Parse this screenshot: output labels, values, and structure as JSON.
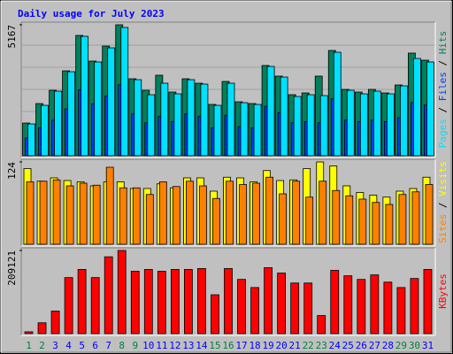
{
  "title": "Daily usage for July 2023",
  "chart_data": [
    {
      "type": "bar",
      "legend_separator": " / ",
      "series": [
        {
          "name": "Hits",
          "color": "#00805c",
          "values": [
            1291,
            2059,
            2583,
            3351,
            4747,
            3735,
            4329,
            5167,
            3037,
            2583,
            3177,
            2513,
            3037,
            2862,
            2025,
            2932,
            2129,
            2059,
            3561,
            3142,
            2409,
            2479,
            3142,
            4154,
            2618,
            2513,
            2618,
            2479,
            2793,
            4050,
            3770
          ]
        },
        {
          "name": "Files",
          "color": "#0040ff",
          "values": [
            700,
            1100,
            1400,
            1850,
            2600,
            2050,
            2350,
            2800,
            1650,
            1300,
            1550,
            1350,
            1650,
            1550,
            1100,
            1600,
            1150,
            1100,
            1950,
            1700,
            1300,
            1350,
            1300,
            2250,
            1400,
            1350,
            1400,
            1350,
            1500,
            2100,
            2000
          ]
        },
        {
          "name": "Pages",
          "color": "#00e0ff",
          "values": [
            1256,
            1989,
            2548,
            3316,
            4712,
            3700,
            4258,
            5061,
            3001,
            2408,
            2862,
            2443,
            3001,
            2827,
            1989,
            2862,
            2094,
            2024,
            3525,
            3106,
            2338,
            2408,
            2373,
            4083,
            2583,
            2443,
            2548,
            2443,
            2757,
            3839,
            3700
          ]
        }
      ],
      "ylim": [
        0,
        5167
      ],
      "yticks": [
        5167
      ]
    },
    {
      "type": "bar",
      "legend_separator": " / ",
      "series": [
        {
          "name": "Visits",
          "color": "#ffff00",
          "values": [
            114,
            95,
            100,
            96,
            94,
            88,
            94,
            94,
            84,
            84,
            91,
            85,
            100,
            100,
            80,
            101,
            100,
            94,
            111,
            96,
            97,
            114,
            124,
            118,
            88,
            78,
            74,
            71,
            80,
            84,
            101
          ]
        },
        {
          "name": "Sites",
          "color": "#ff8000",
          "values": [
            94,
            95,
            97,
            88,
            92,
            89,
            116,
            85,
            85,
            75,
            94,
            87,
            95,
            88,
            69,
            95,
            90,
            92,
            101,
            76,
            95,
            71,
            95,
            81,
            73,
            68,
            63,
            60,
            75,
            79,
            90
          ]
        }
      ],
      "ylim": [
        0,
        124
      ],
      "yticks": [
        124
      ]
    },
    {
      "type": "bar",
      "categories": [
        "1",
        "2",
        "3",
        "4",
        "5",
        "6",
        "7",
        "8",
        "9",
        "10",
        "11",
        "12",
        "13",
        "14",
        "15",
        "16",
        "17",
        "18",
        "19",
        "20",
        "21",
        "22",
        "23",
        "24",
        "25",
        "26",
        "27",
        "28",
        "29",
        "30",
        "31"
      ],
      "category_colors": [
        "#008040",
        "#008040",
        "#0000ff",
        "#0000ff",
        "#0000ff",
        "#0000ff",
        "#0000ff",
        "#008040",
        "#008040",
        "#0000ff",
        "#0000ff",
        "#0000ff",
        "#0000ff",
        "#0000ff",
        "#008040",
        "#008040",
        "#0000ff",
        "#0000ff",
        "#0000ff",
        "#0000ff",
        "#0000ff",
        "#008040",
        "#008040",
        "#0000ff",
        "#0000ff",
        "#0000ff",
        "#0000ff",
        "#0000ff",
        "#008040",
        "#008040",
        "#0000ff"
      ],
      "series": [
        {
          "name": "KBytes",
          "color": "#ff0000",
          "values": [
            4546,
            27276,
            56825,
            140926,
            161383,
            140926,
            193205,
            209121,
            156837,
            161383,
            156837,
            161383,
            161383,
            163656,
            97739,
            163656,
            136380,
            115923,
            165929,
            152291,
            127288,
            127288,
            45460,
            159110,
            145472,
            136380,
            147745,
            129561,
            115923,
            138653,
            161383
          ]
        }
      ],
      "ylim": [
        0,
        209121
      ],
      "yticks": [
        209121
      ]
    }
  ]
}
